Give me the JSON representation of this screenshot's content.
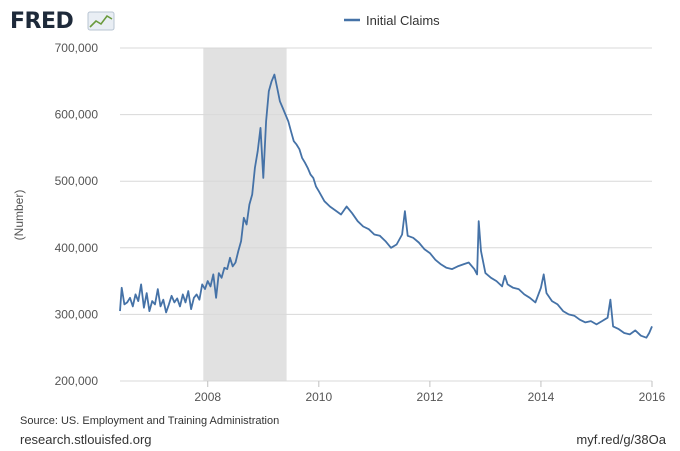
{
  "logo": {
    "text": "FRED"
  },
  "source_text": "Source: US. Employment and Training Administration",
  "footer": {
    "left": "research.stlouisfed.org",
    "right": "myf.red/g/38Oa"
  },
  "colors": {
    "series": "#4572a7",
    "recession": "#e1e1e1",
    "grid": "#d8d8d8"
  },
  "chart_data": {
    "type": "line",
    "title": "",
    "xlabel": "",
    "ylabel": "(Number)",
    "legend": {
      "position": "top-center",
      "entries": [
        "Initial Claims"
      ]
    },
    "grid": true,
    "xlim": [
      2006.42,
      2016.0
    ],
    "ylim": [
      200000,
      700000
    ],
    "x_ticks": [
      2008,
      2010,
      2012,
      2014,
      2016
    ],
    "x_tick_labels": [
      "2008",
      "2010",
      "2012",
      "2014",
      "2016"
    ],
    "y_ticks": [
      200000,
      300000,
      400000,
      500000,
      600000,
      700000
    ],
    "y_tick_labels": [
      "200,000",
      "300,000",
      "400,000",
      "500,000",
      "600,000",
      "700,000"
    ],
    "shaded_regions": [
      {
        "label": "recession",
        "x_start": 2007.92,
        "x_end": 2009.42
      }
    ],
    "series": [
      {
        "name": "Initial Claims",
        "color": "#4572a7",
        "x": [
          2006.42,
          2006.45,
          2006.5,
          2006.55,
          2006.6,
          2006.65,
          2006.7,
          2006.75,
          2006.8,
          2006.85,
          2006.9,
          2006.95,
          2007.0,
          2007.05,
          2007.1,
          2007.15,
          2007.2,
          2007.25,
          2007.3,
          2007.35,
          2007.4,
          2007.45,
          2007.5,
          2007.55,
          2007.6,
          2007.65,
          2007.7,
          2007.75,
          2007.8,
          2007.85,
          2007.9,
          2007.95,
          2008.0,
          2008.05,
          2008.1,
          2008.15,
          2008.2,
          2008.25,
          2008.3,
          2008.35,
          2008.4,
          2008.45,
          2008.5,
          2008.55,
          2008.6,
          2008.65,
          2008.7,
          2008.75,
          2008.8,
          2008.85,
          2008.9,
          2008.95,
          2009.0,
          2009.05,
          2009.1,
          2009.15,
          2009.2,
          2009.25,
          2009.3,
          2009.35,
          2009.4,
          2009.45,
          2009.5,
          2009.55,
          2009.6,
          2009.65,
          2009.7,
          2009.75,
          2009.8,
          2009.85,
          2009.9,
          2009.95,
          2010.0,
          2010.1,
          2010.2,
          2010.3,
          2010.4,
          2010.5,
          2010.6,
          2010.7,
          2010.8,
          2010.9,
          2011.0,
          2011.1,
          2011.2,
          2011.3,
          2011.4,
          2011.5,
          2011.55,
          2011.6,
          2011.7,
          2011.8,
          2011.9,
          2012.0,
          2012.1,
          2012.2,
          2012.3,
          2012.4,
          2012.5,
          2012.6,
          2012.7,
          2012.8,
          2012.85,
          2012.88,
          2012.92,
          2013.0,
          2013.1,
          2013.2,
          2013.3,
          2013.35,
          2013.4,
          2013.5,
          2013.6,
          2013.7,
          2013.8,
          2013.9,
          2014.0,
          2014.05,
          2014.1,
          2014.2,
          2014.3,
          2014.4,
          2014.5,
          2014.6,
          2014.7,
          2014.8,
          2014.9,
          2015.0,
          2015.1,
          2015.2,
          2015.25,
          2015.3,
          2015.4,
          2015.5,
          2015.6,
          2015.7,
          2015.8,
          2015.9,
          2015.95,
          2016.0
        ],
        "values": [
          305000,
          340000,
          315000,
          318000,
          325000,
          312000,
          330000,
          320000,
          345000,
          310000,
          332000,
          305000,
          320000,
          315000,
          338000,
          312000,
          322000,
          303000,
          315000,
          328000,
          318000,
          324000,
          312000,
          330000,
          318000,
          335000,
          308000,
          325000,
          330000,
          322000,
          345000,
          338000,
          350000,
          342000,
          360000,
          325000,
          362000,
          355000,
          370000,
          368000,
          385000,
          372000,
          378000,
          395000,
          410000,
          445000,
          435000,
          465000,
          480000,
          520000,
          545000,
          580000,
          505000,
          590000,
          635000,
          650000,
          660000,
          640000,
          620000,
          610000,
          600000,
          590000,
          575000,
          560000,
          555000,
          548000,
          535000,
          528000,
          520000,
          510000,
          505000,
          492000,
          485000,
          470000,
          462000,
          456000,
          450000,
          462000,
          452000,
          440000,
          432000,
          428000,
          420000,
          418000,
          410000,
          400000,
          405000,
          420000,
          455000,
          418000,
          415000,
          408000,
          398000,
          392000,
          382000,
          375000,
          370000,
          368000,
          372000,
          375000,
          378000,
          368000,
          360000,
          440000,
          395000,
          362000,
          355000,
          350000,
          342000,
          358000,
          345000,
          340000,
          338000,
          330000,
          325000,
          318000,
          340000,
          360000,
          332000,
          320000,
          315000,
          305000,
          300000,
          298000,
          292000,
          288000,
          290000,
          285000,
          290000,
          295000,
          322000,
          282000,
          278000,
          272000,
          270000,
          276000,
          268000,
          265000,
          272000,
          282000
        ]
      }
    ]
  }
}
